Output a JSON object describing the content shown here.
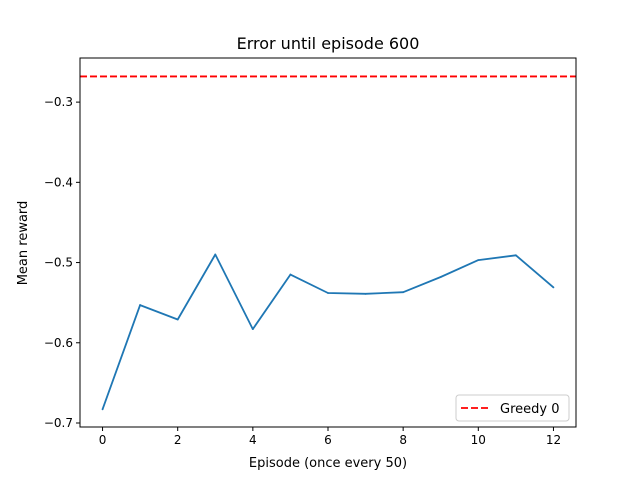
{
  "chart_data": {
    "type": "line",
    "title": "Error until episode 600",
    "xlabel": "Episode (once every 50)",
    "ylabel": "Mean reward",
    "xlim": [
      -0.6,
      12.6
    ],
    "ylim": [
      -0.705,
      -0.245
    ],
    "xticks": [
      0,
      2,
      4,
      6,
      8,
      10,
      12
    ],
    "xtick_labels": [
      "0",
      "2",
      "4",
      "6",
      "8",
      "10",
      "12"
    ],
    "yticks": [
      -0.7,
      -0.6,
      -0.5,
      -0.4,
      -0.3
    ],
    "ytick_labels": [
      "−0.7",
      "−0.6",
      "−0.5",
      "−0.4",
      "−0.3"
    ],
    "grid": false,
    "legend_position": "lower right",
    "series": [
      {
        "color": "#1f77b4",
        "style": "solid",
        "x": [
          0,
          1,
          2,
          3,
          4,
          5,
          6,
          7,
          8,
          9,
          10,
          11,
          12
        ],
        "values": [
          -0.683,
          -0.553,
          -0.571,
          -0.49,
          -0.583,
          -0.515,
          -0.538,
          -0.539,
          -0.537,
          -0.518,
          -0.497,
          -0.491,
          -0.531
        ]
      }
    ],
    "reference_lines": [
      {
        "name": "Greedy 0",
        "orientation": "horizontal",
        "y": -0.268,
        "color": "#ff0000",
        "style": "dashed"
      }
    ]
  }
}
